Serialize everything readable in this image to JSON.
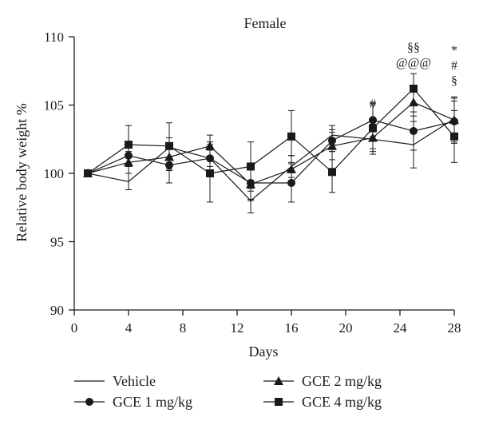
{
  "chart_data": {
    "type": "line",
    "title": "Female",
    "xlabel": "Days",
    "ylabel": "Relative body weight %",
    "xlim": [
      0,
      28
    ],
    "ylim": [
      90,
      110
    ],
    "xticks": [
      0,
      4,
      8,
      12,
      16,
      20,
      24,
      28
    ],
    "yticks": [
      90,
      95,
      100,
      105,
      110
    ],
    "xtick_labels": [
      "0",
      "4",
      "8",
      "12",
      "16",
      "20",
      "24",
      "28"
    ],
    "ytick_labels": [
      "90",
      "95",
      "100",
      "105",
      "110"
    ],
    "grid": false,
    "legend_position": "bottom",
    "series": [
      {
        "name": "Vehicle",
        "marker": "none",
        "points": [
          {
            "x": 1,
            "y": 100.0
          },
          {
            "x": 4,
            "y": 99.4,
            "err": 0.6
          },
          {
            "x": 7,
            "y": 101.9,
            "err": 0.7
          },
          {
            "x": 10,
            "y": 101.1,
            "err": 0.6
          },
          {
            "x": 13,
            "y": 98.0,
            "err": 0.9
          },
          {
            "x": 16,
            "y": 100.5,
            "err": 0.8
          },
          {
            "x": 19,
            "y": 102.8,
            "err": 0.7
          },
          {
            "x": 22,
            "y": 102.5,
            "err": 0.7
          },
          {
            "x": 25,
            "y": 102.1,
            "err": 1.7
          },
          {
            "x": 28,
            "y": 104.0,
            "err": 1.5
          }
        ]
      },
      {
        "name": "GCE 1 mg/kg",
        "marker": "circle",
        "points": [
          {
            "x": 1,
            "y": 100.0
          },
          {
            "x": 4,
            "y": 101.3,
            "err": 0.8
          },
          {
            "x": 7,
            "y": 100.6,
            "err": 1.3
          },
          {
            "x": 10,
            "y": 101.1,
            "err": 1.2
          },
          {
            "x": 13,
            "y": 99.3,
            "err": 1.2
          },
          {
            "x": 16,
            "y": 99.3,
            "err": 1.4
          },
          {
            "x": 19,
            "y": 102.4,
            "err": 0.8
          },
          {
            "x": 22,
            "y": 103.9,
            "err": 1.2
          },
          {
            "x": 25,
            "y": 103.1,
            "err": 1.4
          },
          {
            "x": 28,
            "y": 103.8,
            "err": 1.5
          }
        ]
      },
      {
        "name": "GCE 2 mg/kg",
        "marker": "triangle",
        "points": [
          {
            "x": 1,
            "y": 100.0
          },
          {
            "x": 4,
            "y": 100.8,
            "err": 0.8
          },
          {
            "x": 7,
            "y": 101.2,
            "err": 1.0
          },
          {
            "x": 10,
            "y": 102.0,
            "err": 0.8
          },
          {
            "x": 13,
            "y": 99.2,
            "err": 1.2
          },
          {
            "x": 16,
            "y": 100.3,
            "err": 1.0
          },
          {
            "x": 19,
            "y": 102.0,
            "err": 1.0
          },
          {
            "x": 22,
            "y": 102.6,
            "err": 1.0
          },
          {
            "x": 25,
            "y": 105.2,
            "err": 1.0
          },
          {
            "x": 28,
            "y": 103.9,
            "err": 1.7
          }
        ]
      },
      {
        "name": "GCE 4 mg/kg",
        "marker": "square",
        "points": [
          {
            "x": 1,
            "y": 100.0
          },
          {
            "x": 4,
            "y": 102.1,
            "err": 1.4
          },
          {
            "x": 7,
            "y": 102.0,
            "err": 1.7
          },
          {
            "x": 10,
            "y": 100.0,
            "err": 2.1
          },
          {
            "x": 13,
            "y": 100.5,
            "err": 1.8
          },
          {
            "x": 16,
            "y": 102.7,
            "err": 1.9
          },
          {
            "x": 19,
            "y": 100.1,
            "err": 1.5
          },
          {
            "x": 22,
            "y": 103.3,
            "err": 1.9
          },
          {
            "x": 25,
            "y": 106.2,
            "err": 1.1
          },
          {
            "x": 28,
            "y": 102.7,
            "err": 1.9
          }
        ]
      }
    ],
    "annotations": [
      {
        "x": 22,
        "y_text_level": 104.8,
        "lines": [
          "#"
        ]
      },
      {
        "x": 25,
        "y_text_level": 107.8,
        "lines": [
          "§§",
          "@@@"
        ]
      },
      {
        "x": 28,
        "y_text_level": 106.5,
        "lines": [
          "*",
          "#",
          "§"
        ]
      }
    ]
  }
}
